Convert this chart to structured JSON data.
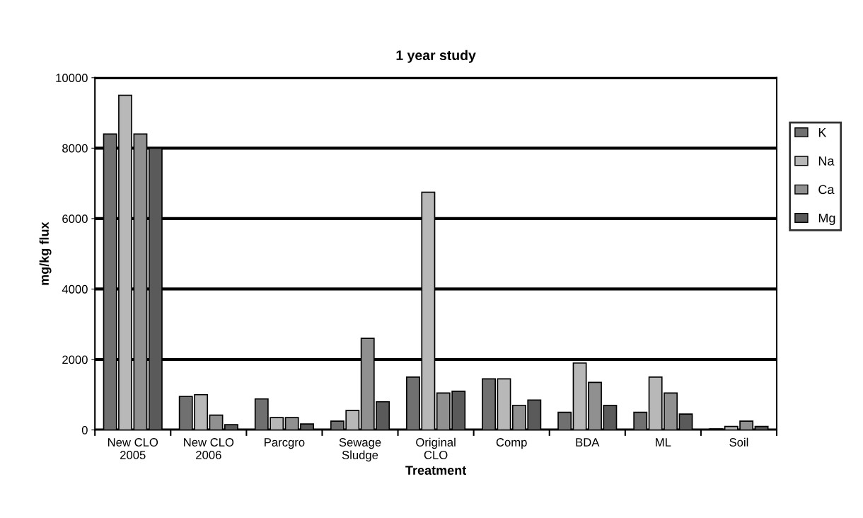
{
  "chart_data": {
    "type": "bar",
    "title": "1 year study",
    "xlabel": "Treatment",
    "ylabel": "mg/kg flux",
    "categories": [
      "New CLO\n2005",
      "New CLO\n2006",
      "Parcgro",
      "Sewage\nSludge",
      "Original\nCLO",
      "Comp",
      "BDA",
      "ML",
      "Soil"
    ],
    "series": [
      {
        "name": "K",
        "color": "#707070",
        "values": [
          8400,
          950,
          880,
          250,
          1500,
          1450,
          500,
          500,
          30
        ]
      },
      {
        "name": "Na",
        "color": "#b8b8b8",
        "values": [
          9500,
          1000,
          350,
          550,
          6750,
          1450,
          1900,
          1500,
          100
        ]
      },
      {
        "name": "Ca",
        "color": "#909090",
        "values": [
          8400,
          420,
          350,
          2600,
          1050,
          700,
          1350,
          1050,
          250
        ]
      },
      {
        "name": "Mg",
        "color": "#5a5a5a",
        "values": [
          8000,
          150,
          170,
          800,
          1100,
          850,
          700,
          450,
          100
        ]
      }
    ],
    "ylim": [
      0,
      10000
    ],
    "yticks": [
      0,
      2000,
      4000,
      6000,
      8000,
      10000
    ],
    "grid": "y",
    "legend": "right"
  }
}
